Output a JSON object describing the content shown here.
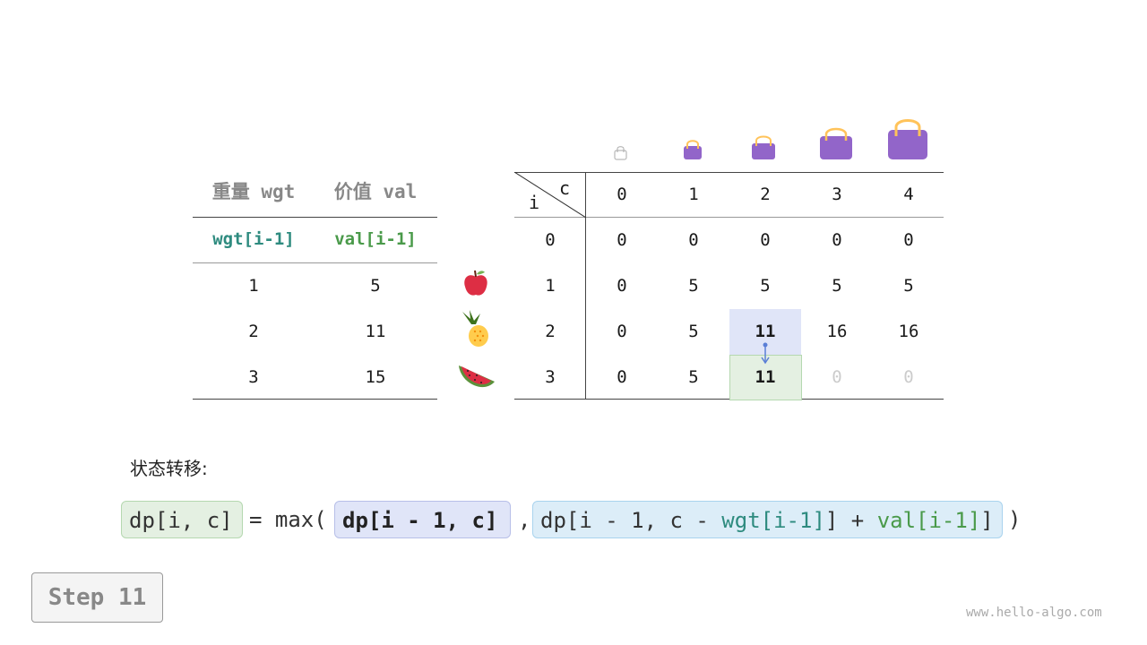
{
  "left_table": {
    "headers": [
      "重量 wgt",
      "价值 val"
    ],
    "subheaders": [
      "wgt[i-1]",
      "val[i-1]"
    ],
    "rows": [
      [
        "1",
        "5"
      ],
      [
        "2",
        "11"
      ],
      [
        "3",
        "15"
      ]
    ],
    "colors": {
      "wgt": "#2e8b7f",
      "val": "#4a9a4a",
      "header": "#888888"
    }
  },
  "items": [
    "apple-icon",
    "pineapple-icon",
    "watermelon-icon"
  ],
  "dp_table": {
    "corner_i": "i",
    "corner_c": "c",
    "cols": [
      "0",
      "1",
      "2",
      "3",
      "4"
    ],
    "row_labels": [
      "0",
      "1",
      "2",
      "3"
    ],
    "rows": [
      [
        "0",
        "0",
        "0",
        "0",
        "0"
      ],
      [
        "0",
        "5",
        "5",
        "5",
        "5"
      ],
      [
        "0",
        "5",
        "11",
        "16",
        "16"
      ],
      [
        "0",
        "5",
        "11",
        "0",
        "0"
      ]
    ],
    "highlight_source": {
      "row": 2,
      "col": 2,
      "color": "#e0e5f8"
    },
    "highlight_target": {
      "row": 3,
      "col": 2,
      "color": "#e4f0e2"
    },
    "pending_cells": [
      [
        3,
        3
      ],
      [
        3,
        4
      ]
    ]
  },
  "bags": [
    "empty-bag-icon",
    "bag-icon",
    "bag-icon",
    "bag-icon",
    "bag-icon"
  ],
  "transition_label": "状态转移:",
  "formula": {
    "lhs": "dp[i, c]",
    "eq": "= max(",
    "arg1": "dp[i - 1, c]",
    "comma": ",",
    "arg2_a": "dp[i - 1, c - ",
    "arg2_wgt": "wgt[i-1]",
    "arg2_b": "] + ",
    "arg2_val": "val[i-1]",
    "close": ")"
  },
  "step_label": "Step 11",
  "watermark": "www.hello-algo.com"
}
